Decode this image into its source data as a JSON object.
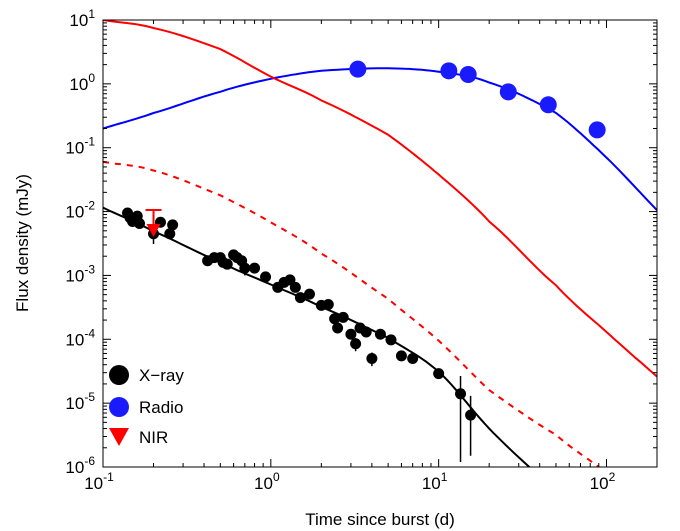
{
  "chart_data": {
    "type": "scatter",
    "title": "",
    "xlabel": "Time since burst  (d)",
    "ylabel": "Flux density  (mJy)",
    "x_scale": "log",
    "y_scale": "log",
    "xlim": [
      0.1,
      200
    ],
    "ylim": [
      1e-06,
      10
    ],
    "x_ticks": [
      {
        "base": "10",
        "exp": "-1",
        "value": 0.1
      },
      {
        "base": "10",
        "exp": "0",
        "value": 1
      },
      {
        "base": "10",
        "exp": "1",
        "value": 10
      },
      {
        "base": "10",
        "exp": "2",
        "value": 100
      }
    ],
    "y_ticks": [
      {
        "base": "10",
        "exp": "1",
        "value": 10
      },
      {
        "base": "10",
        "exp": "0",
        "value": 1
      },
      {
        "base": "10",
        "exp": "-1",
        "value": 0.1
      },
      {
        "base": "10",
        "exp": "-2",
        "value": 0.01
      },
      {
        "base": "10",
        "exp": "-3",
        "value": 0.001
      },
      {
        "base": "10",
        "exp": "-4",
        "value": 0.0001
      },
      {
        "base": "10",
        "exp": "-5",
        "value": 1e-05
      },
      {
        "base": "10",
        "exp": "-6",
        "value": 1e-06
      }
    ],
    "grid": false,
    "legend_position": "bottom-left",
    "legend": [
      {
        "label": "X−ray",
        "marker": "circle",
        "color": "#000000"
      },
      {
        "label": "Radio",
        "marker": "circle",
        "color": "#1a1aff"
      },
      {
        "label": "NIR",
        "marker": "triangle-down",
        "color": "#ff0000"
      }
    ],
    "series": [
      {
        "name": "X−ray",
        "kind": "points",
        "color": "#000000",
        "marker": "circle",
        "x": [
          0.14,
          0.145,
          0.15,
          0.16,
          0.165,
          0.2,
          0.22,
          0.25,
          0.26,
          0.42,
          0.46,
          0.5,
          0.52,
          0.55,
          0.6,
          0.63,
          0.67,
          0.7,
          0.8,
          0.93,
          1.1,
          1.2,
          1.3,
          1.4,
          1.5,
          1.7,
          2.0,
          2.2,
          2.4,
          2.5,
          2.7,
          3.0,
          3.2,
          3.4,
          3.7,
          4.0,
          4.5,
          5.2,
          6.0,
          7.0,
          10.0,
          13.5,
          15.5
        ],
        "y": [
          0.0095,
          0.008,
          0.007,
          0.0085,
          0.0065,
          0.0045,
          0.0068,
          0.0045,
          0.0062,
          0.0017,
          0.0019,
          0.0019,
          0.0016,
          0.0015,
          0.0021,
          0.0019,
          0.0017,
          0.0013,
          0.0013,
          0.00095,
          0.00065,
          0.00078,
          0.00085,
          0.00065,
          0.00045,
          0.00051,
          0.00034,
          0.00035,
          0.00021,
          0.00015,
          0.00022,
          0.00012,
          8.5e-05,
          0.00015,
          0.00013,
          5e-05,
          0.00012,
          9.8e-05,
          5.5e-05,
          5e-05,
          2.9e-05,
          1.4e-05,
          6.5e-06
        ],
        "yerr_low": [
          0,
          0,
          0,
          0,
          0,
          0.0014,
          0,
          0,
          0,
          0,
          0,
          0,
          0,
          0,
          0,
          0,
          0,
          0.0003,
          0,
          0,
          0,
          0,
          0,
          0,
          0,
          0,
          0,
          0,
          0,
          0,
          0,
          0,
          2e-05,
          0,
          0,
          1.2e-05,
          0,
          0,
          0,
          0,
          0,
          1.28e-05,
          5e-06
        ],
        "yerr_high": [
          0,
          0,
          0,
          0,
          0,
          0.0014,
          0,
          0,
          0,
          0,
          0,
          0,
          0,
          0,
          0,
          0,
          0,
          0.0003,
          0,
          0,
          0,
          0,
          0,
          0,
          0,
          0,
          0,
          0,
          0,
          0,
          0,
          0,
          2e-05,
          0,
          0,
          1.2e-05,
          0,
          0,
          0,
          0,
          0,
          1.26e-05,
          6.5e-06
        ]
      },
      {
        "name": "Radio",
        "kind": "points",
        "color": "#1a1aff",
        "marker": "circle",
        "x": [
          3.3,
          11.5,
          15,
          26,
          45,
          88
        ],
        "y": [
          1.7,
          1.6,
          1.4,
          0.75,
          0.47,
          0.19
        ]
      },
      {
        "name": "NIR",
        "kind": "upper-limit",
        "color": "#ff0000",
        "marker": "triangle-down",
        "x": [
          0.2
        ],
        "y": [
          0.0106
        ]
      },
      {
        "name": "X-ray model",
        "kind": "line",
        "color": "#000000",
        "dash": "",
        "x": [
          0.1,
          0.2,
          0.5,
          1,
          2,
          5,
          10,
          20,
          40
        ],
        "y": [
          0.0115,
          0.0049,
          0.00162,
          0.00072,
          0.00032,
          0.000105,
          3.1e-05,
          4e-06,
          7e-07
        ]
      },
      {
        "name": "Radio model",
        "kind": "line",
        "color": "#0000ff",
        "dash": "",
        "x": [
          0.1,
          0.2,
          0.5,
          1,
          2,
          5,
          10,
          20,
          50,
          100,
          200
        ],
        "y": [
          0.2,
          0.35,
          0.75,
          1.2,
          1.6,
          1.75,
          1.55,
          1.05,
          0.35,
          0.07,
          0.0105
        ]
      },
      {
        "name": "Red model",
        "kind": "line",
        "color": "#ff0000",
        "dash": "",
        "x": [
          0.1,
          0.2,
          0.5,
          1,
          2,
          5,
          10,
          20,
          50,
          100,
          200
        ],
        "y": [
          10,
          7.5,
          3.5,
          1.3,
          0.55,
          0.16,
          0.038,
          0.007,
          0.0007,
          0.00013,
          2.6e-05
        ]
      },
      {
        "name": "Red model (dashed)",
        "kind": "line",
        "color": "#ff0000",
        "dash": "6,6",
        "x": [
          0.1,
          0.2,
          0.5,
          1,
          2,
          5,
          10,
          20,
          50,
          90
        ],
        "y": [
          0.06,
          0.044,
          0.018,
          0.0068,
          0.0022,
          0.00043,
          9.5e-05,
          1.6e-05,
          3.2e-06,
          1e-06
        ]
      }
    ]
  }
}
